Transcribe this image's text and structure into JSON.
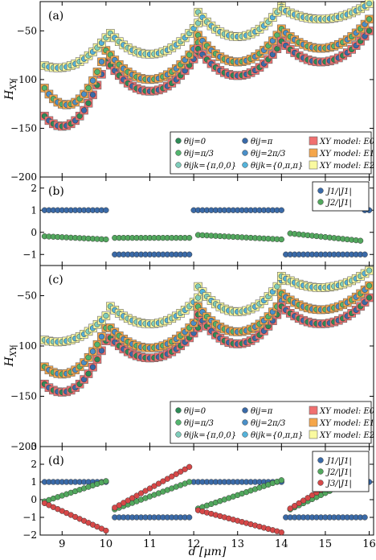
{
  "figure": {
    "xlabel": "d [μm]",
    "xticks": [
      "9",
      "10",
      "11",
      "12",
      "13",
      "14",
      "15",
      "16"
    ],
    "xlim": [
      8.5,
      16.1
    ]
  },
  "colors": {
    "dark_green": "#2e8b57",
    "mid_green": "#52b56e",
    "light_teal": "#7fcdbb",
    "dark_blue": "#3a6aa8",
    "mid_blue": "#4a8fc8",
    "light_blue": "#55b3da",
    "red_sq": "#f07070",
    "orange_sq": "#f5a64a",
    "yellow_sq": "#fafaa0",
    "J1": "#3a6aa8",
    "J2": "#52a85e",
    "J3": "#d64848"
  },
  "chart_data": [
    {
      "type": "scatter",
      "panel_label": "(a)",
      "ylabel": "H_XY",
      "ylim": [
        -200,
        -20
      ],
      "yticks": [
        "−50",
        "−100",
        "−150",
        "−200"
      ],
      "legend": [
        "θij=0",
        "θij=π/3",
        "θijk={π,0,0}",
        "θij=π",
        "θij=2π/3",
        "θijk={0,π,π}",
        "XY model: E0",
        "XY model: E1",
        "XY model: E2"
      ],
      "segments": [
        {
          "x_range": [
            8.6,
            10.0
          ],
          "E0": {
            "min": -148,
            "xmin": 9.0,
            "right": -82
          },
          "E1": {
            "min": -126,
            "xmin": 9.1,
            "right": -70
          },
          "E2": {
            "min": -88,
            "xmin": 8.9,
            "right": -57
          }
        },
        {
          "x_range": [
            10.1,
            12.1
          ],
          "E0": {
            "min": -112,
            "xmin": 11.0,
            "right": -72
          },
          "E1": {
            "min": -100,
            "xmin": 11.0,
            "right": -62
          },
          "E2": {
            "min": -74,
            "xmin": 11.0,
            "right": -42
          }
        },
        {
          "x_range": [
            12.1,
            14.0
          ],
          "E0": {
            "min": -96,
            "xmin": 13.0,
            "right": -62
          },
          "E1": {
            "min": -82,
            "xmin": 13.0,
            "right": -48
          },
          "E2": {
            "min": -56,
            "xmin": 13.0,
            "right": -25
          }
        },
        {
          "x_range": [
            14.0,
            16.0
          ],
          "E0": {
            "min": -82,
            "xmin": 14.9,
            "right": -50
          },
          "E1": {
            "min": -68,
            "xmin": 14.9,
            "right": -38
          },
          "E2": {
            "min": -38,
            "xmin": 14.9,
            "right": -22
          }
        }
      ]
    },
    {
      "type": "scatter",
      "panel_label": "(b)",
      "ylim": [
        -1.5,
        2.5
      ],
      "yticks": [
        "2",
        "1",
        "0",
        "−1"
      ],
      "legend": [
        "J1/|J1|",
        "J2/|J1|"
      ],
      "series": [
        {
          "name": "J1/|J1|",
          "values_by_range": [
            {
              "x": [
                8.6,
                10.0
              ],
              "y": 1
            },
            {
              "x": [
                10.2,
                11.9
              ],
              "y": -1
            },
            {
              "x": [
                12.0,
                14.0
              ],
              "y": 1
            },
            {
              "x": [
                14.1,
                15.9
              ],
              "y": -1
            },
            {
              "x": [
                15.9,
                16.0
              ],
              "y": 1
            }
          ]
        },
        {
          "name": "J2/|J1|",
          "values_by_range": [
            {
              "x": [
                8.6,
                10.0
              ],
              "y": [
                -0.18,
                -0.32
              ]
            },
            {
              "x": [
                10.2,
                11.9
              ],
              "y": [
                -0.25,
                -0.25
              ]
            },
            {
              "x": [
                12.1,
                14.0
              ],
              "y": [
                -0.12,
                -0.32
              ]
            },
            {
              "x": [
                14.2,
                15.8
              ],
              "y": [
                -0.05,
                -0.38
              ]
            }
          ]
        }
      ]
    },
    {
      "type": "scatter",
      "panel_label": "(c)",
      "ylabel": "H_XY",
      "ylim": [
        -200,
        -20
      ],
      "yticks": [
        "−50",
        "−100",
        "−150",
        "−200"
      ],
      "legend": [
        "θij=0",
        "θij=π/3",
        "θijk={π,0,0}",
        "θij=π",
        "θij=2π/3",
        "θijk={0,π,π}",
        "XY model: E0",
        "XY model: E1",
        "XY model: E2"
      ],
      "segments": [
        {
          "x_range": [
            8.6,
            10.0
          ],
          "E0": {
            "min": -146,
            "xmin": 9.0,
            "right": -95
          },
          "E1": {
            "min": -128,
            "xmin": 9.0,
            "right": -82
          },
          "E2": {
            "min": -96,
            "xmin": 8.9,
            "right": -70
          }
        },
        {
          "x_range": [
            10.1,
            12.1
          ],
          "E0": {
            "min": -112,
            "xmin": 11.0,
            "right": -82
          },
          "E1": {
            "min": -102,
            "xmin": 11.0,
            "right": -72
          },
          "E2": {
            "min": -78,
            "xmin": 11.0,
            "right": -52
          }
        },
        {
          "x_range": [
            12.1,
            14.0
          ],
          "E0": {
            "min": -98,
            "xmin": 13.0,
            "right": -62
          },
          "E1": {
            "min": -86,
            "xmin": 13.0,
            "right": -55
          },
          "E2": {
            "min": -66,
            "xmin": 13.0,
            "right": -35
          }
        },
        {
          "x_range": [
            14.0,
            16.0
          ],
          "E0": {
            "min": -78,
            "xmin": 14.9,
            "right": -52
          },
          "E1": {
            "min": -64,
            "xmin": 14.9,
            "right": -40
          },
          "E2": {
            "min": -42,
            "xmin": 14.9,
            "right": -25
          }
        }
      ]
    },
    {
      "type": "scatter",
      "panel_label": "(d)",
      "ylim": [
        -2,
        3
      ],
      "yticks": [
        "3",
        "2",
        "1",
        "0",
        "−1",
        "−2"
      ],
      "legend": [
        "J1/|J1|",
        "J2/|J1|",
        "J3/|J1|"
      ],
      "series": [
        {
          "name": "J1/|J1|",
          "values_by_range": [
            {
              "x": [
                8.6,
                10.0
              ],
              "y": 1
            },
            {
              "x": [
                10.2,
                11.9
              ],
              "y": -1
            },
            {
              "x": [
                12.0,
                14.0
              ],
              "y": 1
            },
            {
              "x": [
                14.1,
                15.9
              ],
              "y": -1
            },
            {
              "x": [
                15.9,
                16.0
              ],
              "y": 1
            }
          ]
        },
        {
          "name": "J2/|J1|",
          "values_by_range": [
            {
              "x": [
                8.6,
                10.0
              ],
              "y": [
                -0.1,
                1.05
              ]
            },
            {
              "x": [
                10.2,
                11.9
              ],
              "y": [
                -0.55,
                1.0
              ]
            },
            {
              "x": [
                12.1,
                14.0
              ],
              "y": [
                -0.5,
                1.1
              ]
            },
            {
              "x": [
                14.2,
                15.8
              ],
              "y": [
                -0.55,
                1.3
              ]
            }
          ]
        },
        {
          "name": "J3/|J1|",
          "values_by_range": [
            {
              "x": [
                8.6,
                10.0
              ],
              "y": [
                -0.2,
                -1.75
              ]
            },
            {
              "x": [
                10.2,
                11.9
              ],
              "y": [
                -0.45,
                1.85
              ]
            },
            {
              "x": [
                12.1,
                14.0
              ],
              "y": [
                -0.6,
                -1.85
              ]
            },
            {
              "x": [
                14.2,
                15.8
              ],
              "y": [
                -0.5,
                1.9
              ]
            }
          ]
        }
      ]
    }
  ]
}
